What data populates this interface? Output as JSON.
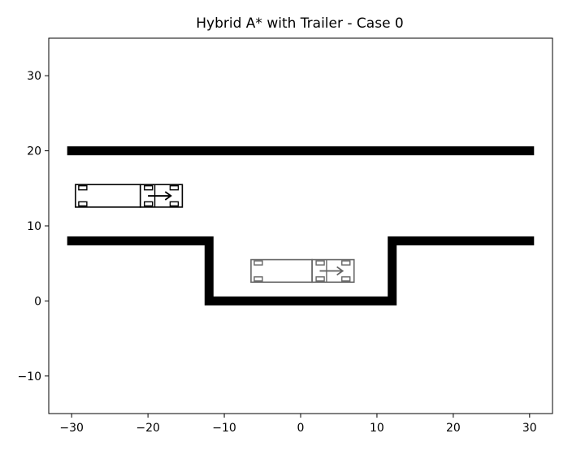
{
  "chart_data": {
    "type": "line",
    "title": "Hybrid A* with Trailer - Case 0",
    "xlabel": "",
    "ylabel": "",
    "xlim": [
      -33,
      33
    ],
    "ylim": [
      -15,
      35
    ],
    "xticks": [
      -30,
      -20,
      -10,
      0,
      10,
      20,
      30
    ],
    "yticks": [
      -10,
      0,
      10,
      20,
      30
    ],
    "xtick_labels": [
      "−30",
      "−20",
      "−10",
      "0",
      "10",
      "20",
      "30"
    ],
    "ytick_labels": [
      "−10",
      "0",
      "10",
      "20",
      "30"
    ],
    "grid": false,
    "obstacles": [
      {
        "points": [
          [
            -30,
            20
          ],
          [
            30,
            20
          ]
        ]
      },
      {
        "points": [
          [
            -30,
            8
          ],
          [
            -12,
            8
          ],
          [
            -12,
            0
          ],
          [
            12,
            0
          ],
          [
            12,
            8
          ],
          [
            30,
            8
          ]
        ]
      }
    ],
    "vehicles": [
      {
        "role": "start",
        "color": "#000000",
        "trailer": {
          "x_min": -29.5,
          "x_max": -21,
          "y_min": 12.5,
          "y_max": 15.5
        },
        "tractor": {
          "x_min": -21,
          "x_max": -15.5,
          "y_min": 12.5,
          "y_max": 15.5
        },
        "arrow": {
          "from": [
            -20,
            14
          ],
          "to": [
            -17,
            14
          ]
        }
      },
      {
        "role": "goal",
        "color": "#666666",
        "trailer": {
          "x_min": -6.5,
          "x_max": 1.5,
          "y_min": 2.5,
          "y_max": 5.5
        },
        "tractor": {
          "x_min": 1.5,
          "x_max": 7,
          "y_min": 2.5,
          "y_max": 5.5
        },
        "arrow": {
          "from": [
            2.5,
            4
          ],
          "to": [
            5.5,
            4
          ]
        }
      }
    ]
  }
}
